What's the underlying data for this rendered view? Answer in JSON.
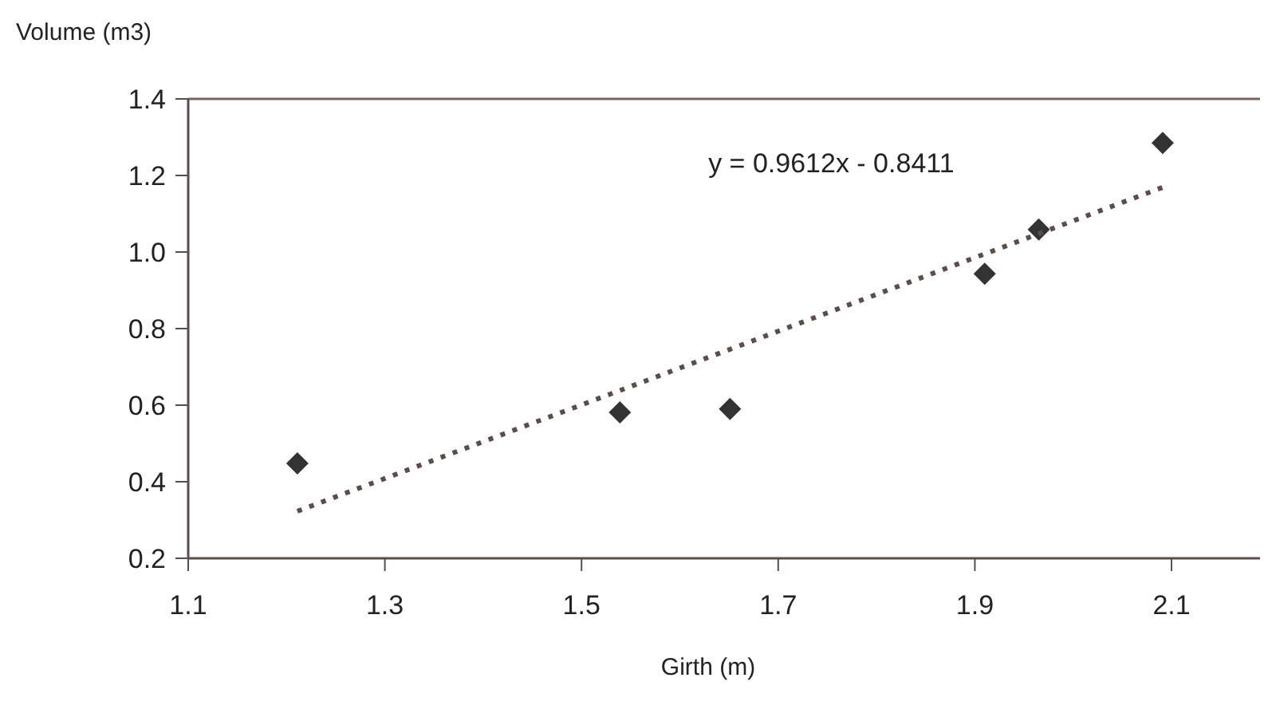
{
  "chart_data": {
    "type": "scatter",
    "xlabel": "Girth (m)",
    "ylabel": "Volume (m3)",
    "xlim": [
      1.1,
      2.19
    ],
    "xticks": [
      1.1,
      1.3,
      1.5,
      1.7,
      1.9,
      2.1
    ],
    "ylim": [
      0.2,
      1.4
    ],
    "yticks": [
      0.2,
      0.4,
      0.6,
      0.8,
      {
        "value": 1,
        "label": "1.0"
      },
      1.2,
      1.4
    ],
    "grid": false,
    "marker": "diamond",
    "series": [
      {
        "color": "#333333",
        "x": [
          1.211,
          1.539,
          1.651,
          1.91,
          1.965,
          2.091
        ],
        "values": [
          0.448,
          0.581,
          0.59,
          0.943,
          1.059,
          1.285
        ]
      },
      {
        "type": "line",
        "color": "#5a4d4a",
        "line_style": "dotted",
        "marker": "none",
        "x": [
          1.211,
          2.091
        ],
        "values": [
          0.323,
          1.169
        ]
      }
    ],
    "annotations": [
      "y = 0.9612x - 0.8411"
    ]
  }
}
